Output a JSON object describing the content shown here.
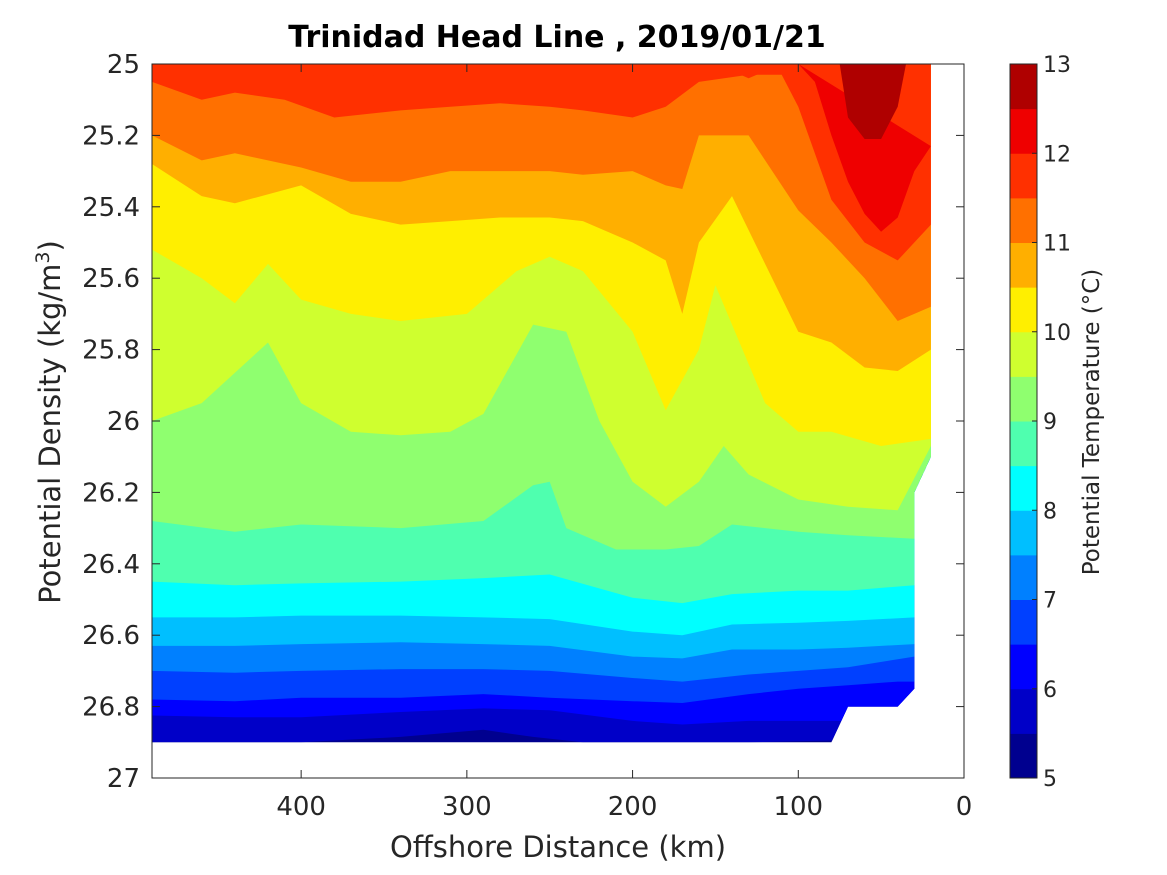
{
  "chart_data": {
    "type": "heatmap",
    "subtype": "filled-contour",
    "title": "Trinidad Head Line , 2019/01/21",
    "xlabel": "Offshore Distance (km)",
    "ylabel_main": "Potential Density (kg/m",
    "ylabel_sup": "3",
    "ylabel_tail": ")",
    "colorbar_label": "Potential Temperature (°C)",
    "x_reversed": true,
    "y_reversed": true,
    "xlim": [
      490,
      0
    ],
    "ylim": [
      27,
      25
    ],
    "xticks": [
      400,
      300,
      200,
      100,
      0
    ],
    "xtick_labels": [
      "400",
      "300",
      "200",
      "100",
      "0"
    ],
    "yticks": [
      25,
      25.2,
      25.4,
      25.6,
      25.8,
      26,
      26.2,
      26.4,
      26.6,
      26.8,
      27
    ],
    "ytick_labels": [
      "25",
      "25.2",
      "25.4",
      "25.6",
      "25.8",
      "26",
      "26.2",
      "26.4",
      "26.6",
      "26.8",
      "27"
    ],
    "colorbar": {
      "range": [
        5,
        13
      ],
      "step": 0.5,
      "tick_values": [
        5,
        6,
        7,
        8,
        9,
        10,
        11,
        12,
        13
      ],
      "tick_labels": [
        "5",
        "6",
        "7",
        "8",
        "9",
        "10",
        "11",
        "12",
        "13"
      ],
      "colors": [
        "#00008f",
        "#0000c8",
        "#0000ff",
        "#0040ff",
        "#0080ff",
        "#00bfff",
        "#00ffff",
        "#4fffaf",
        "#8fff6f",
        "#cfff2f",
        "#ffef00",
        "#ffaf00",
        "#ff7000",
        "#ff3000",
        "#ef0000",
        "#af0000"
      ]
    },
    "data_extent": {
      "x_max": 490,
      "x_min_by_band": [
        {
          "density": 25.0,
          "x_min": 20
        },
        {
          "density": 26.1,
          "x_min": 20
        },
        {
          "density": 26.2,
          "x_min": 30
        },
        {
          "density": 26.75,
          "x_min": 30
        },
        {
          "density": 26.8,
          "x_min": 40
        },
        {
          "density": 26.8,
          "x_min": 70
        },
        {
          "density": 26.9,
          "x_min": 80
        }
      ],
      "bottom_density": 26.9
    },
    "isotherms": [
      {
        "temp": 5.5,
        "x": [
          490,
          440,
          400,
          340,
          290,
          260,
          230,
          180,
          130,
          80
        ],
        "y": [
          26.9,
          26.9,
          26.9,
          26.885,
          26.865,
          26.885,
          26.9,
          26.9,
          26.9,
          26.895
        ]
      },
      {
        "temp": 6.0,
        "x": [
          490,
          440,
          400,
          340,
          290,
          250,
          200,
          170,
          130,
          80,
          70
        ],
        "y": [
          26.825,
          26.83,
          26.83,
          26.815,
          26.805,
          26.81,
          26.84,
          26.85,
          26.84,
          26.84,
          26.84
        ]
      },
      {
        "temp": 6.5,
        "x": [
          490,
          440,
          400,
          340,
          290,
          250,
          200,
          170,
          130,
          100,
          70,
          40
        ],
        "y": [
          26.78,
          26.785,
          26.775,
          26.775,
          26.765,
          26.775,
          26.785,
          26.79,
          26.765,
          26.75,
          26.74,
          26.73
        ]
      },
      {
        "temp": 7.0,
        "x": [
          490,
          440,
          400,
          340,
          290,
          250,
          200,
          170,
          130,
          100,
          70,
          30
        ],
        "y": [
          26.7,
          26.705,
          26.7,
          26.695,
          26.695,
          26.7,
          26.72,
          26.73,
          26.71,
          26.7,
          26.69,
          26.66
        ]
      },
      {
        "temp": 7.5,
        "x": [
          490,
          440,
          400,
          340,
          290,
          250,
          200,
          170,
          140,
          100,
          70,
          30
        ],
        "y": [
          26.63,
          26.63,
          26.625,
          26.62,
          26.625,
          26.63,
          26.66,
          26.665,
          26.64,
          26.64,
          26.635,
          26.625
        ]
      },
      {
        "temp": 8.0,
        "x": [
          490,
          440,
          400,
          340,
          290,
          250,
          200,
          170,
          140,
          100,
          70,
          30
        ],
        "y": [
          26.55,
          26.55,
          26.545,
          26.545,
          26.55,
          26.555,
          26.59,
          26.6,
          26.57,
          26.565,
          26.56,
          26.55
        ]
      },
      {
        "temp": 8.5,
        "x": [
          490,
          440,
          400,
          340,
          290,
          250,
          200,
          170,
          140,
          100,
          70,
          30
        ],
        "y": [
          26.45,
          26.46,
          26.455,
          26.45,
          26.44,
          26.43,
          26.495,
          26.51,
          26.485,
          26.475,
          26.475,
          26.46
        ]
      },
      {
        "temp": 9.0,
        "x": [
          490,
          440,
          400,
          340,
          290,
          260,
          250,
          240,
          210,
          180,
          160,
          140,
          120,
          100,
          70,
          30
        ],
        "y": [
          26.28,
          26.31,
          26.29,
          26.3,
          26.28,
          26.18,
          26.17,
          26.3,
          26.36,
          26.36,
          26.35,
          26.29,
          26.3,
          26.31,
          26.32,
          26.33
        ]
      },
      {
        "temp": 9.5,
        "x": [
          490,
          460,
          420,
          400,
          370,
          340,
          310,
          290,
          260,
          240,
          220,
          200,
          180,
          160,
          145,
          130,
          100,
          70,
          40,
          20
        ],
        "y": [
          26.0,
          25.95,
          25.78,
          25.95,
          26.03,
          26.04,
          26.03,
          25.98,
          25.73,
          25.75,
          26.0,
          26.17,
          26.24,
          26.17,
          26.07,
          26.15,
          26.22,
          26.24,
          26.25,
          26.07
        ]
      },
      {
        "temp": 10.0,
        "x": [
          490,
          460,
          440,
          420,
          400,
          370,
          340,
          300,
          270,
          250,
          230,
          200,
          180,
          160,
          150,
          140,
          120,
          100,
          80,
          50,
          20
        ],
        "y": [
          25.52,
          25.6,
          25.67,
          25.56,
          25.66,
          25.7,
          25.72,
          25.7,
          25.58,
          25.54,
          25.58,
          25.75,
          25.97,
          25.8,
          25.62,
          25.73,
          25.95,
          26.03,
          26.03,
          26.07,
          26.05
        ]
      },
      {
        "temp": 10.5,
        "x": [
          490,
          460,
          440,
          400,
          370,
          340,
          310,
          280,
          250,
          230,
          200,
          180,
          170,
          160,
          140,
          120,
          100,
          80,
          60,
          40,
          20
        ],
        "y": [
          25.28,
          25.37,
          25.39,
          25.34,
          25.42,
          25.45,
          25.44,
          25.43,
          25.43,
          25.44,
          25.5,
          25.55,
          25.7,
          25.5,
          25.37,
          25.56,
          25.75,
          25.78,
          25.85,
          25.86,
          25.8
        ]
      },
      {
        "temp": 11.0,
        "x": [
          490,
          460,
          440,
          400,
          370,
          340,
          310,
          280,
          250,
          230,
          200,
          180,
          170,
          160,
          130,
          100,
          80,
          60,
          40,
          20
        ],
        "y": [
          25.2,
          25.27,
          25.25,
          25.29,
          25.33,
          25.33,
          25.3,
          25.3,
          25.3,
          25.31,
          25.3,
          25.34,
          25.35,
          25.2,
          25.2,
          25.41,
          25.5,
          25.6,
          25.72,
          25.68
        ]
      },
      {
        "temp": 11.5,
        "x": [
          490,
          460,
          440,
          410,
          380,
          340,
          310,
          280,
          250,
          230,
          200,
          180,
          160,
          130,
          110,
          100,
          80,
          60,
          40,
          20
        ],
        "y": [
          25.05,
          25.1,
          25.08,
          25.1,
          25.15,
          25.13,
          25.12,
          25.11,
          25.12,
          25.13,
          25.15,
          25.12,
          25.05,
          25.03,
          25.03,
          25.12,
          25.38,
          25.5,
          25.55,
          25.45
        ]
      },
      {
        "temp": 12.0,
        "x": [
          100,
          90,
          80,
          70,
          60,
          50,
          40,
          30,
          20
        ],
        "y": [
          25.0,
          25.05,
          25.2,
          25.33,
          25.42,
          25.47,
          25.43,
          25.3,
          25.23
        ]
      },
      {
        "temp": 12.5,
        "x": [
          75,
          70,
          60,
          50,
          40,
          35
        ],
        "y": [
          25.0,
          25.15,
          25.21,
          25.21,
          25.12,
          25.0
        ]
      }
    ],
    "top_bands": [
      {
        "temp": 11.5,
        "x": [
          400,
          380,
          360,
          340
        ],
        "y": [
          25.0,
          25.04,
          25.04,
          25.0
        ]
      },
      {
        "temp": 11.5,
        "x": [
          285,
          265,
          245,
          225
        ],
        "y": [
          25.0,
          25.02,
          25.02,
          25.0
        ]
      },
      {
        "temp": 11.5,
        "x": [
          150,
          130,
          110
        ],
        "y": [
          25.0,
          25.04,
          25.0
        ]
      }
    ],
    "grid": false,
    "colorbar_position": "right"
  }
}
